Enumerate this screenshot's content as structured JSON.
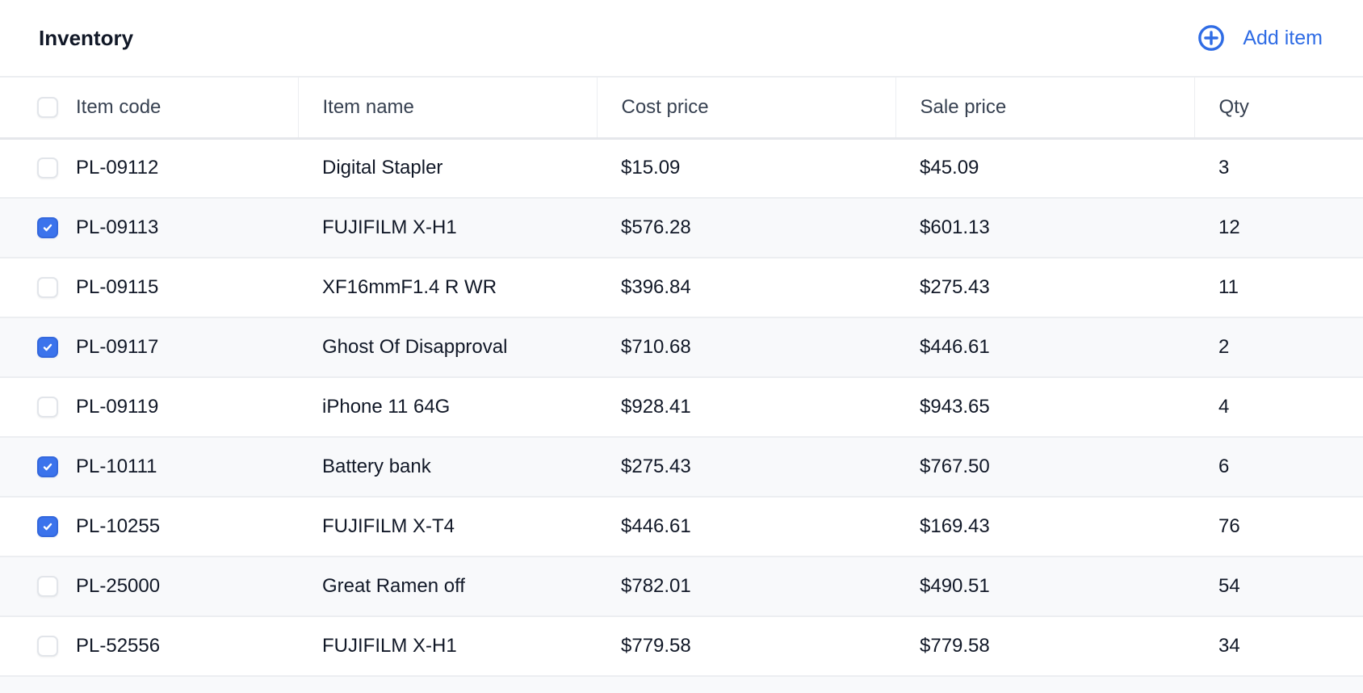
{
  "header": {
    "title": "Inventory",
    "add_label": "Add item",
    "add_icon": "plus-circle-icon",
    "accent": "#2f6ce5"
  },
  "table": {
    "columns": [
      "Item code",
      "Item name",
      "Cost price",
      "Sale price",
      "Qty"
    ],
    "header_checked": false,
    "rows": [
      {
        "checked": false,
        "code": "PL-09112",
        "name": "Digital Stapler",
        "cost": "$15.09",
        "sale": "$45.09",
        "qty": "3"
      },
      {
        "checked": true,
        "code": "PL-09113",
        "name": "FUJIFILM X-H1",
        "cost": "$576.28",
        "sale": "$601.13",
        "qty": "12"
      },
      {
        "checked": false,
        "code": "PL-09115",
        "name": "XF16mmF1.4 R WR",
        "cost": "$396.84",
        "sale": "$275.43",
        "qty": "11"
      },
      {
        "checked": true,
        "code": "PL-09117",
        "name": "Ghost Of Disapproval",
        "cost": "$710.68",
        "sale": "$446.61",
        "qty": "2"
      },
      {
        "checked": false,
        "code": "PL-09119",
        "name": "iPhone 11 64G",
        "cost": "$928.41",
        "sale": "$943.65",
        "qty": "4"
      },
      {
        "checked": true,
        "code": "PL-10111",
        "name": "Battery bank",
        "cost": "$275.43",
        "sale": "$767.50",
        "qty": "6"
      },
      {
        "checked": true,
        "code": "PL-10255",
        "name": "FUJIFILM X-T4",
        "cost": "$446.61",
        "sale": "$169.43",
        "qty": "76"
      },
      {
        "checked": false,
        "code": "PL-25000",
        "name": "Great Ramen off",
        "cost": "$782.01",
        "sale": "$490.51",
        "qty": "54"
      },
      {
        "checked": false,
        "code": "PL-52556",
        "name": "FUJIFILM X-H1",
        "cost": "$779.58",
        "sale": "$779.58",
        "qty": "34"
      }
    ]
  }
}
